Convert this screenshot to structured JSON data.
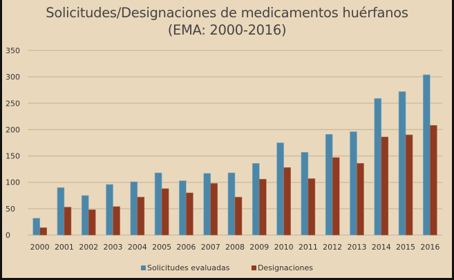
{
  "chart_data": {
    "type": "bar",
    "title": "Solicitudes/Designaciones de medicamentos huérfanos",
    "subtitle": "(EMA: 2000-2016)",
    "xlabel": "",
    "ylabel": "",
    "ylim": [
      0,
      350
    ],
    "yticks": [
      "0",
      "50",
      "100",
      "150",
      "200",
      "250",
      "300",
      "350"
    ],
    "ytick_values": [
      0,
      50,
      100,
      150,
      200,
      250,
      300,
      350
    ],
    "grid": true,
    "legend_position": "bottom",
    "categories": [
      "2000",
      "2001",
      "2002",
      "2003",
      "2004",
      "2005",
      "2006",
      "2007",
      "2008",
      "2009",
      "2010",
      "2011",
      "2012",
      "2013",
      "2014",
      "2015",
      "2016"
    ],
    "series": [
      {
        "name": "Solicitudes evaluadas",
        "color": "#4C87A8",
        "values": [
          32,
          90,
          75,
          96,
          101,
          118,
          103,
          117,
          118,
          136,
          175,
          157,
          191,
          196,
          259,
          272,
          304
        ]
      },
      {
        "name": "Designaciones",
        "color": "#8E3B22",
        "values": [
          14,
          53,
          48,
          54,
          72,
          88,
          80,
          98,
          72,
          106,
          128,
          107,
          147,
          136,
          186,
          190,
          208
        ]
      }
    ]
  },
  "colors": {
    "background": "#EAD8BC",
    "gridline": "#CBB99E",
    "frame": "#111111"
  }
}
